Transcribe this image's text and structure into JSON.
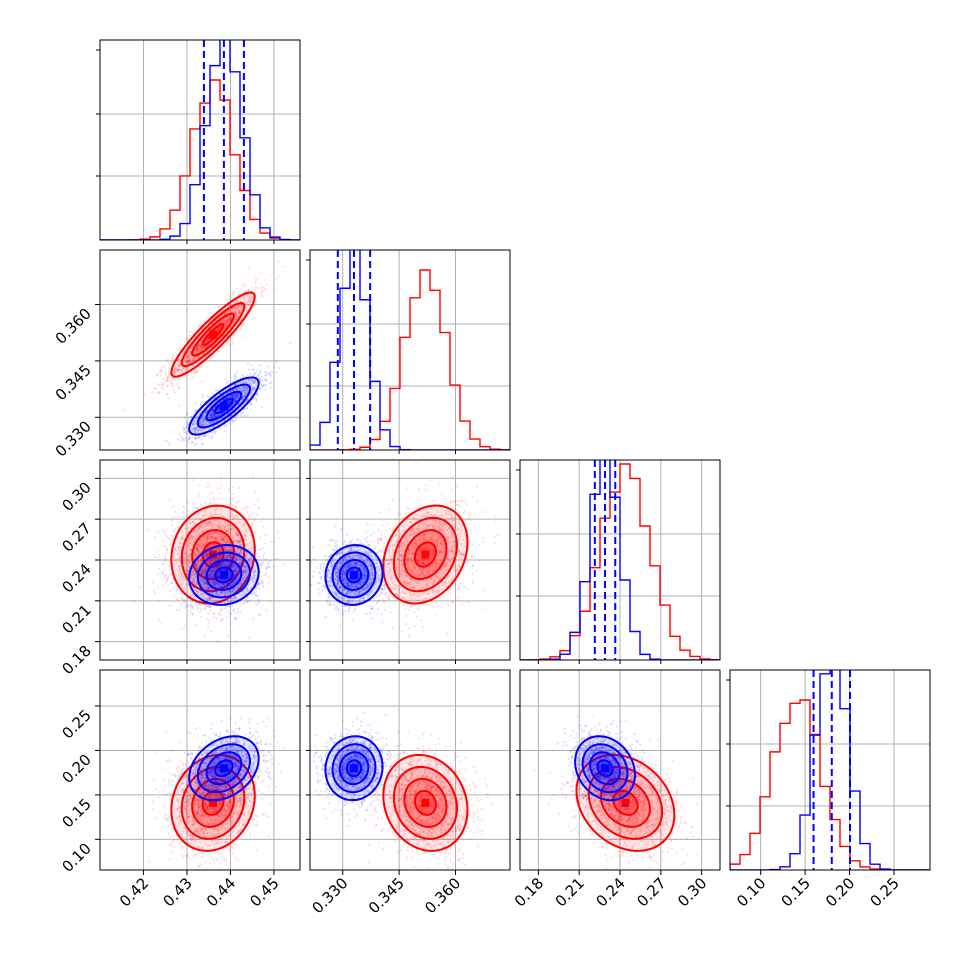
{
  "chart_data": {
    "type": "corner",
    "title": "",
    "parameters": [
      {
        "xlim": [
          0.41,
          0.456
        ],
        "ticks": [
          0.42,
          0.43,
          0.44,
          0.45
        ],
        "tick_labels": [
          "0.42",
          "0.43",
          "0.44",
          "0.45"
        ]
      },
      {
        "xlim": [
          0.3213,
          0.3745
        ],
        "ticks": [
          0.33,
          0.345,
          0.36
        ],
        "tick_labels": [
          "0.330",
          "0.345",
          "0.360"
        ]
      },
      {
        "xlim": [
          0.1665,
          0.3135
        ],
        "ticks": [
          0.18,
          0.21,
          0.24,
          0.27,
          0.3
        ],
        "tick_labels": [
          "0.18",
          "0.21",
          "0.24",
          "0.27",
          "0.30"
        ]
      },
      {
        "xlim": [
          0.0655,
          0.2905
        ],
        "ticks": [
          0.1,
          0.15,
          0.2,
          0.25
        ],
        "tick_labels": [
          "0.10",
          "0.15",
          "0.20",
          "0.25"
        ]
      }
    ],
    "series": [
      {
        "color": "#ff0000",
        "means": [
          0.436,
          0.352,
          0.244,
          0.141
        ],
        "sigmas": [
          0.0048,
          0.0056,
          0.018,
          0.027
        ],
        "correlations": {
          "0-1": 0.9,
          "0-2": 0.1,
          "0-3": 0.15,
          "1-2": 0.25,
          "1-3": -0.15,
          "2-3": -0.25
        },
        "quantiles": [],
        "hist_peak": [
          0.8,
          0.9,
          0.98,
          0.85
        ]
      },
      {
        "color": "#0000ff",
        "means": [
          0.4385,
          0.333,
          0.229,
          0.18
        ],
        "sigmas": [
          0.004,
          0.0038,
          0.011,
          0.018
        ],
        "correlations": {
          "0-1": 0.8,
          "0-2": 0.1,
          "0-3": 0.3,
          "1-2": 0.05,
          "1-3": 0.05,
          "2-3": -0.2
        },
        "quantiles": [
          [
            0.4339,
            0.4385,
            0.4431
          ],
          [
            0.3287,
            0.333,
            0.3373
          ],
          [
            0.2215,
            0.229,
            0.2365
          ],
          [
            0.1595,
            0.18,
            0.2005
          ]
        ],
        "hist_peak": [
          1.05,
          1.05,
          1.05,
          1.05
        ]
      }
    ],
    "contour_levels_sigma": [
      0.5,
      1.0,
      1.5,
      2.0
    ],
    "grid": true,
    "xlabel": "",
    "ylabel": ""
  }
}
